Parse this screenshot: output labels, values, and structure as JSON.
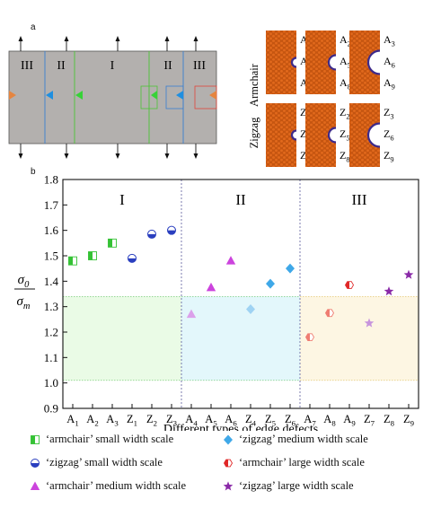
{
  "panel_a": {
    "letter": "a",
    "region_labels": [
      "III",
      "II",
      "I",
      "II",
      "III"
    ],
    "colors": {
      "substrate": "#b3b0ae",
      "region_II_line": "#3a7fd0",
      "region_I_line": "#4cc436",
      "red_box": "#e0453a",
      "orange_marker": "#e58540",
      "blue_marker": "#1f8fe0",
      "green_marker": "#37d237",
      "atom_orange": "#e2691c",
      "atom_purple": "#3d2a8a"
    },
    "row_labels": [
      "Armchair",
      "Zigzag"
    ],
    "defect_labels": {
      "armchair": [
        [
          "A",
          "1"
        ],
        [
          "A",
          "4"
        ],
        [
          "A",
          "7"
        ],
        [
          "A",
          "2"
        ],
        [
          "A",
          "5"
        ],
        [
          "A",
          "8"
        ],
        [
          "A",
          "3"
        ],
        [
          "A",
          "6"
        ],
        [
          "A",
          "9"
        ]
      ],
      "zigzag": [
        [
          "Z",
          "1"
        ],
        [
          "Z",
          "4"
        ],
        [
          "Z",
          "7"
        ],
        [
          "Z",
          "2"
        ],
        [
          "Z",
          "5"
        ],
        [
          "Z",
          "8"
        ],
        [
          "Z",
          "3"
        ],
        [
          "Z",
          "6"
        ],
        [
          "Z",
          "9"
        ]
      ]
    }
  },
  "panel_b": {
    "letter": "b",
    "region_labels": [
      "I",
      "II",
      "III"
    ],
    "region_colors": [
      "#eafbe6",
      "#e3f7fb",
      "#fdf6e3"
    ],
    "region_border_colors": [
      "#66c466",
      "#66c466",
      "#e0c060"
    ]
  },
  "chart_data": {
    "type": "scatter",
    "title": "",
    "xlabel": "Different types of edge defects",
    "ylabel_numerator": "σ0",
    "ylabel_denominator": "σm",
    "ylim": [
      0.9,
      1.8
    ],
    "yticks": [
      "0.9",
      "1.0",
      "1.1",
      "1.2",
      "1.3",
      "1.4",
      "1.5",
      "1.6",
      "1.7",
      "1.8"
    ],
    "x_ticks": [
      [
        "A",
        "1"
      ],
      [
        "A",
        "2"
      ],
      [
        "A",
        "3"
      ],
      [
        "Z",
        "1"
      ],
      [
        "Z",
        "2"
      ],
      [
        "Z",
        "3"
      ],
      [
        "A",
        "4"
      ],
      [
        "A",
        "5"
      ],
      [
        "A",
        "6"
      ],
      [
        "Z",
        "4"
      ],
      [
        "Z",
        "5"
      ],
      [
        "Z",
        "6"
      ],
      [
        "A",
        "7"
      ],
      [
        "A",
        "8"
      ],
      [
        "A",
        "9"
      ],
      [
        "Z",
        "7"
      ],
      [
        "Z",
        "8"
      ],
      [
        "Z",
        "9"
      ]
    ],
    "shaded_bands": [
      {
        "region": "I",
        "y_from": 1.01,
        "y_to": 1.34
      },
      {
        "region": "II",
        "y_from": 1.01,
        "y_to": 1.34
      },
      {
        "region": "III",
        "y_from": 1.01,
        "y_to": 1.34
      }
    ],
    "series": [
      {
        "name": "‘armchair’ small width scale",
        "marker": "half-square",
        "color": "#35c235",
        "points": [
          {
            "x": "A1",
            "y": 1.48
          },
          {
            "x": "A2",
            "y": 1.5
          },
          {
            "x": "A3",
            "y": 1.55
          }
        ]
      },
      {
        "name": "‘zigzag’ small width scale",
        "marker": "half-circle",
        "color": "#2a3fbf",
        "points": [
          {
            "x": "Z1",
            "y": 1.49
          },
          {
            "x": "Z2",
            "y": 1.585
          },
          {
            "x": "Z3",
            "y": 1.6
          }
        ]
      },
      {
        "name": "‘armchair’ medium width scale",
        "marker": "triangle",
        "color": "#cc44dd",
        "points": [
          {
            "x": "A4",
            "y": 1.27
          },
          {
            "x": "A5",
            "y": 1.375
          },
          {
            "x": "A6",
            "y": 1.48
          }
        ]
      },
      {
        "name": "‘zigzag’ medium width scale",
        "marker": "diamond",
        "color": "#3fa8e8",
        "points": [
          {
            "x": "Z4",
            "y": 1.29
          },
          {
            "x": "Z5",
            "y": 1.39
          },
          {
            "x": "Z6",
            "y": 1.45
          }
        ]
      },
      {
        "name": "‘armchair’ large width scale",
        "marker": "half-hexagon",
        "color": "#e02828",
        "points": [
          {
            "x": "A7",
            "y": 1.18
          },
          {
            "x": "A8",
            "y": 1.275
          },
          {
            "x": "A9",
            "y": 1.385
          }
        ]
      },
      {
        "name": "‘zigzag’ large width scale",
        "marker": "star",
        "color": "#8a2aa8",
        "points": [
          {
            "x": "Z7",
            "y": 1.235
          },
          {
            "x": "Z8",
            "y": 1.36
          },
          {
            "x": "Z9",
            "y": 1.425
          }
        ]
      }
    ]
  }
}
